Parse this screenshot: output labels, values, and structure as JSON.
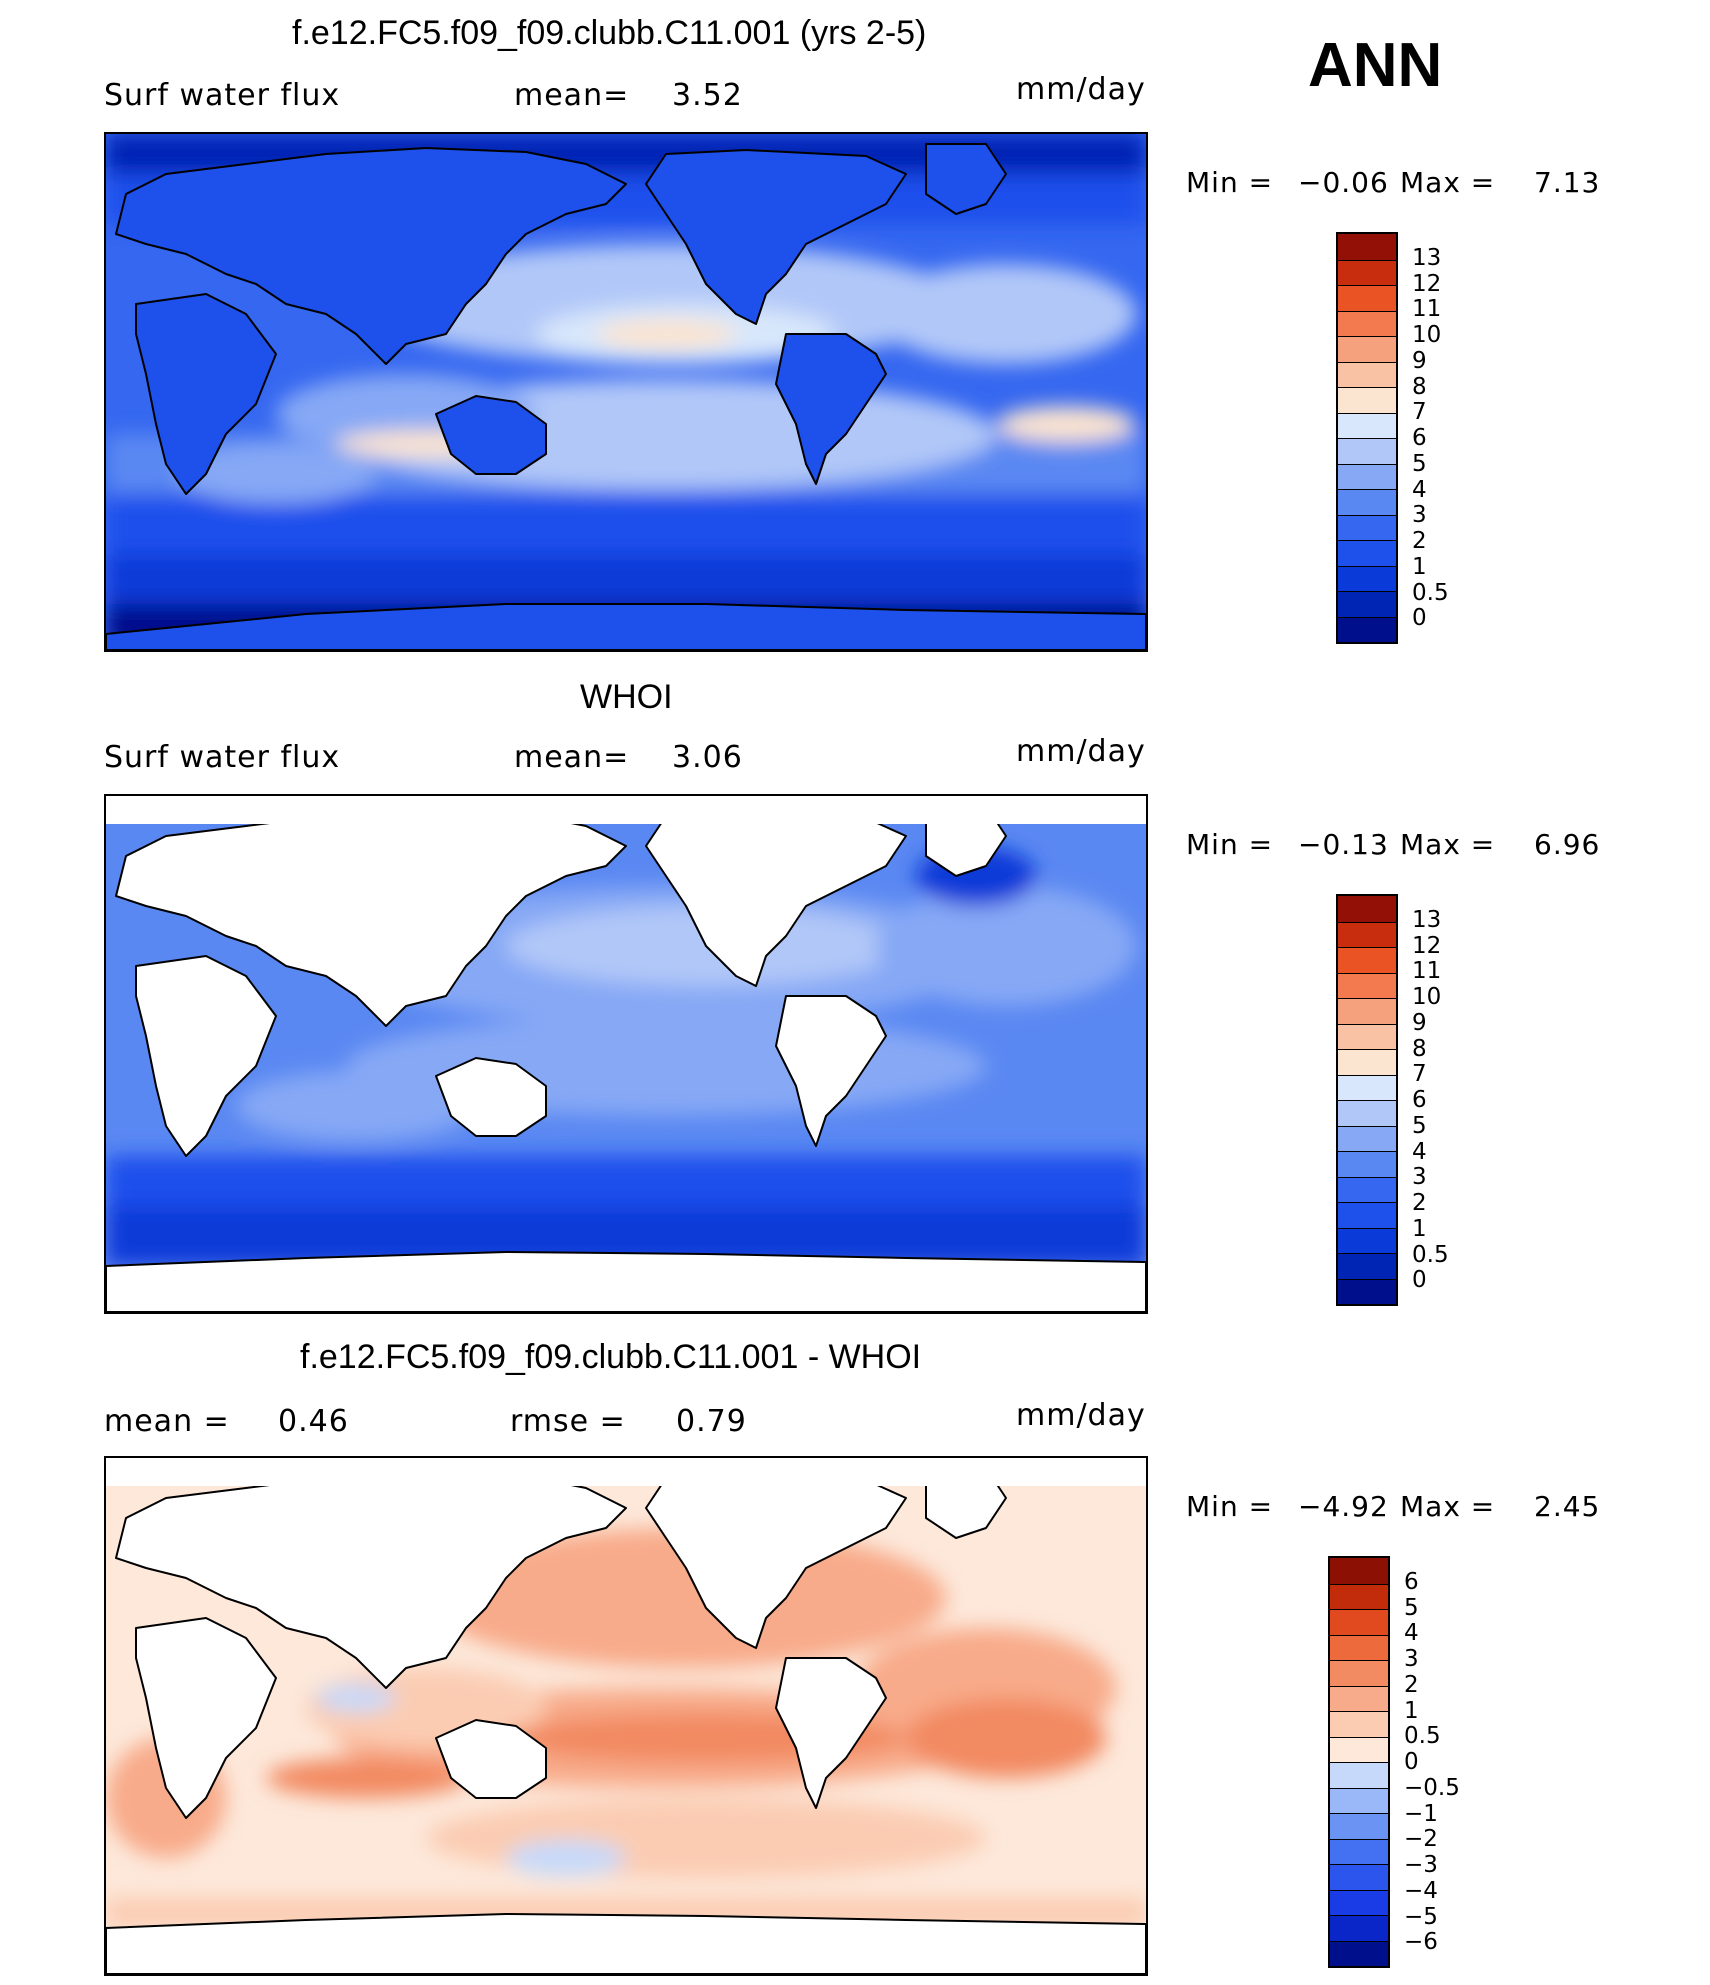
{
  "season": "ANN",
  "legend_panel_tail": "",
  "colors": {
    "abs_scale": [
      "#00108c",
      "#0024b4",
      "#0a3ad8",
      "#1e50ec",
      "#3567f0",
      "#5a88f2",
      "#86a8f5",
      "#b1c7f8",
      "#d8e7fb",
      "#fbe4d0",
      "#f9c2a4",
      "#f6a17d",
      "#f27a4e",
      "#ea5424",
      "#c82e0e",
      "#921006"
    ],
    "diff_scale": [
      "#00108c",
      "#0a26c8",
      "#1a3ce6",
      "#2c55ee",
      "#4470f2",
      "#6a93f4",
      "#9ab7f7",
      "#c6d9fa",
      "#fde8da",
      "#fbccb2",
      "#f8ab8a",
      "#f28a62",
      "#ec6a3c",
      "#e04a1e",
      "#c22c0a",
      "#8c1004"
    ],
    "land": "#ffffff",
    "coast": "#000000"
  },
  "panels": [
    {
      "title": "f.e12.FC5.f09_f09.clubb.C11.001 (yrs 2-5)",
      "left_label": "Surf  water  flux",
      "mid_label": "mean=",
      "mid_value": "3.52",
      "units": "mm/day",
      "min_label": "Min  =",
      "min_value": "−0.06",
      "max_label": "Max  =",
      "max_value": "7.13",
      "ticks": [
        "13",
        "12",
        "11",
        "10",
        "9",
        "8",
        "7",
        "6",
        "5",
        "4",
        "3",
        "2",
        "1",
        "0.5",
        "0"
      ]
    },
    {
      "title": "WHOI",
      "left_label": "Surf  water  flux",
      "mid_label": "mean=",
      "mid_value": "3.06",
      "units": "mm/day",
      "min_label": "Min  =",
      "min_value": "−0.13",
      "max_label": "Max  =",
      "max_value": "6.96",
      "ticks": [
        "13",
        "12",
        "11",
        "10",
        "9",
        "8",
        "7",
        "6",
        "5",
        "4",
        "3",
        "2",
        "1",
        "0.5",
        "0"
      ]
    },
    {
      "title": "f.e12.FC5.f09_f09.clubb.C11.001 - WHOI",
      "left_label": "mean  =",
      "left_value": "0.46",
      "mid_label": "rmse  =",
      "mid_value": "0.79",
      "units": "mm/day",
      "min_label": "Min  =",
      "min_value": "−4.92",
      "max_label": "Max  =",
      "max_value": "2.45",
      "ticks": [
        "6",
        "5",
        "4",
        "3",
        "2",
        "1",
        "0.5",
        "0",
        "−0.5",
        "−1",
        "−2",
        "−3",
        "−4",
        "−5",
        "−6"
      ]
    }
  ]
}
